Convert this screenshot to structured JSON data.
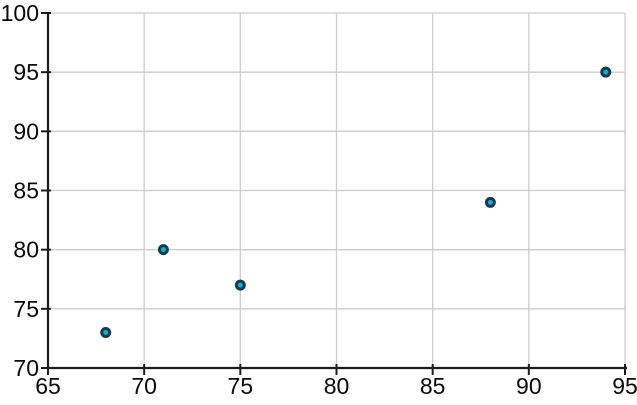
{
  "chart_data": {
    "type": "scatter",
    "title": "",
    "subtitle": "",
    "xlabel": "",
    "ylabel": "",
    "points": [
      {
        "x": 68,
        "y": 73
      },
      {
        "x": 71,
        "y": 80
      },
      {
        "x": 75,
        "y": 77
      },
      {
        "x": 88,
        "y": 84
      },
      {
        "x": 94,
        "y": 95
      }
    ],
    "xlim": [
      65,
      95
    ],
    "ylim": [
      70,
      100
    ],
    "x_ticks": [
      65,
      70,
      75,
      80,
      85,
      90,
      95
    ],
    "y_ticks": [
      70,
      75,
      80,
      85,
      90,
      95,
      100
    ],
    "grid": true,
    "legend": "none",
    "marker": {
      "shape": "circle",
      "fill": "#2ba4c2",
      "stroke": "#103d51",
      "radius": 4,
      "stroke_width": 3
    },
    "colors": {
      "axis": "#1c1c1c",
      "gridline": "#cdcdcd",
      "tick_label": "#0a0a0a",
      "background": "#ffffff"
    }
  }
}
